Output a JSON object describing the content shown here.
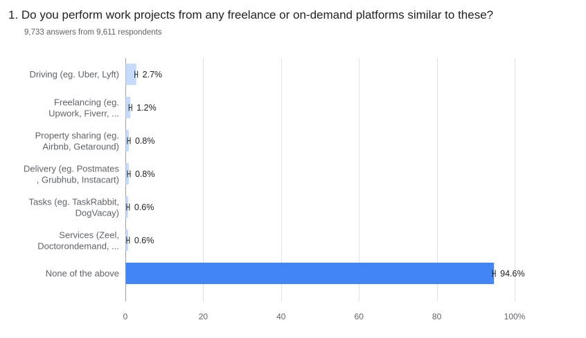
{
  "question": {
    "title": "1.  Do you perform work projects from any freelance or on-demand platforms similar to these?",
    "respondents": "9,733 answers from 9,611 respondents"
  },
  "colors": {
    "bar": "#c6dafc",
    "bar_highlight": "#4285f4",
    "grid": "#e0e0e0",
    "axis": "#9e9e9e"
  },
  "chart_data": {
    "type": "bar",
    "orientation": "horizontal",
    "categories": [
      [
        "Driving (eg. Uber, Lyft)"
      ],
      [
        "Freelancing (eg.",
        "Upwork, Fiverr, ..."
      ],
      [
        "Property sharing (eg.",
        "Airbnb, Getaround)"
      ],
      [
        "Delivery (eg. Postmates",
        ", Grubhub, Instacart)"
      ],
      [
        "Tasks (eg. TaskRabbit,",
        "DogVacay)"
      ],
      [
        "Services (Zeel,",
        "Doctorondemand, ..."
      ],
      [
        "None of the above"
      ]
    ],
    "values": [
      2.7,
      1.2,
      0.8,
      0.8,
      0.6,
      0.6,
      94.6
    ],
    "value_labels": [
      "2.7%",
      "1.2%",
      "0.8%",
      "0.8%",
      "0.6%",
      "0.6%",
      "94.6%"
    ],
    "xlim": [
      0,
      100
    ],
    "xticks": [
      0,
      20,
      40,
      60,
      80,
      100
    ],
    "xtick_labels": [
      "0",
      "20",
      "40",
      "60",
      "80",
      "100%"
    ],
    "grid": true,
    "highlight_index": 6
  }
}
